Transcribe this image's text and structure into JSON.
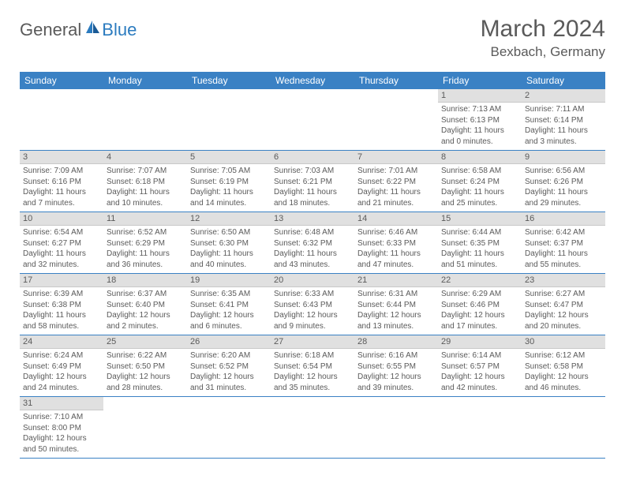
{
  "logo": {
    "text1": "General",
    "text2": "Blue"
  },
  "title": "March 2024",
  "location": "Bexbach, Germany",
  "colors": {
    "header_bg": "#3a81c4",
    "header_text": "#ffffff",
    "daynum_bg": "#e0e0e0",
    "text": "#5a5a5a",
    "row_border": "#3a81c4",
    "logo_accent": "#2b7bbf"
  },
  "dayNames": [
    "Sunday",
    "Monday",
    "Tuesday",
    "Wednesday",
    "Thursday",
    "Friday",
    "Saturday"
  ],
  "weeks": [
    [
      null,
      null,
      null,
      null,
      null,
      {
        "d": "1",
        "sr": "7:13 AM",
        "ss": "6:13 PM",
        "dl": "11 hours and 0 minutes."
      },
      {
        "d": "2",
        "sr": "7:11 AM",
        "ss": "6:14 PM",
        "dl": "11 hours and 3 minutes."
      }
    ],
    [
      {
        "d": "3",
        "sr": "7:09 AM",
        "ss": "6:16 PM",
        "dl": "11 hours and 7 minutes."
      },
      {
        "d": "4",
        "sr": "7:07 AM",
        "ss": "6:18 PM",
        "dl": "11 hours and 10 minutes."
      },
      {
        "d": "5",
        "sr": "7:05 AM",
        "ss": "6:19 PM",
        "dl": "11 hours and 14 minutes."
      },
      {
        "d": "6",
        "sr": "7:03 AM",
        "ss": "6:21 PM",
        "dl": "11 hours and 18 minutes."
      },
      {
        "d": "7",
        "sr": "7:01 AM",
        "ss": "6:22 PM",
        "dl": "11 hours and 21 minutes."
      },
      {
        "d": "8",
        "sr": "6:58 AM",
        "ss": "6:24 PM",
        "dl": "11 hours and 25 minutes."
      },
      {
        "d": "9",
        "sr": "6:56 AM",
        "ss": "6:26 PM",
        "dl": "11 hours and 29 minutes."
      }
    ],
    [
      {
        "d": "10",
        "sr": "6:54 AM",
        "ss": "6:27 PM",
        "dl": "11 hours and 32 minutes."
      },
      {
        "d": "11",
        "sr": "6:52 AM",
        "ss": "6:29 PM",
        "dl": "11 hours and 36 minutes."
      },
      {
        "d": "12",
        "sr": "6:50 AM",
        "ss": "6:30 PM",
        "dl": "11 hours and 40 minutes."
      },
      {
        "d": "13",
        "sr": "6:48 AM",
        "ss": "6:32 PM",
        "dl": "11 hours and 43 minutes."
      },
      {
        "d": "14",
        "sr": "6:46 AM",
        "ss": "6:33 PM",
        "dl": "11 hours and 47 minutes."
      },
      {
        "d": "15",
        "sr": "6:44 AM",
        "ss": "6:35 PM",
        "dl": "11 hours and 51 minutes."
      },
      {
        "d": "16",
        "sr": "6:42 AM",
        "ss": "6:37 PM",
        "dl": "11 hours and 55 minutes."
      }
    ],
    [
      {
        "d": "17",
        "sr": "6:39 AM",
        "ss": "6:38 PM",
        "dl": "11 hours and 58 minutes."
      },
      {
        "d": "18",
        "sr": "6:37 AM",
        "ss": "6:40 PM",
        "dl": "12 hours and 2 minutes."
      },
      {
        "d": "19",
        "sr": "6:35 AM",
        "ss": "6:41 PM",
        "dl": "12 hours and 6 minutes."
      },
      {
        "d": "20",
        "sr": "6:33 AM",
        "ss": "6:43 PM",
        "dl": "12 hours and 9 minutes."
      },
      {
        "d": "21",
        "sr": "6:31 AM",
        "ss": "6:44 PM",
        "dl": "12 hours and 13 minutes."
      },
      {
        "d": "22",
        "sr": "6:29 AM",
        "ss": "6:46 PM",
        "dl": "12 hours and 17 minutes."
      },
      {
        "d": "23",
        "sr": "6:27 AM",
        "ss": "6:47 PM",
        "dl": "12 hours and 20 minutes."
      }
    ],
    [
      {
        "d": "24",
        "sr": "6:24 AM",
        "ss": "6:49 PM",
        "dl": "12 hours and 24 minutes."
      },
      {
        "d": "25",
        "sr": "6:22 AM",
        "ss": "6:50 PM",
        "dl": "12 hours and 28 minutes."
      },
      {
        "d": "26",
        "sr": "6:20 AM",
        "ss": "6:52 PM",
        "dl": "12 hours and 31 minutes."
      },
      {
        "d": "27",
        "sr": "6:18 AM",
        "ss": "6:54 PM",
        "dl": "12 hours and 35 minutes."
      },
      {
        "d": "28",
        "sr": "6:16 AM",
        "ss": "6:55 PM",
        "dl": "12 hours and 39 minutes."
      },
      {
        "d": "29",
        "sr": "6:14 AM",
        "ss": "6:57 PM",
        "dl": "12 hours and 42 minutes."
      },
      {
        "d": "30",
        "sr": "6:12 AM",
        "ss": "6:58 PM",
        "dl": "12 hours and 46 minutes."
      }
    ],
    [
      {
        "d": "31",
        "sr": "7:10 AM",
        "ss": "8:00 PM",
        "dl": "12 hours and 50 minutes."
      },
      null,
      null,
      null,
      null,
      null,
      null
    ]
  ],
  "labels": {
    "sunrise": "Sunrise:",
    "sunset": "Sunset:",
    "daylight": "Daylight:"
  }
}
